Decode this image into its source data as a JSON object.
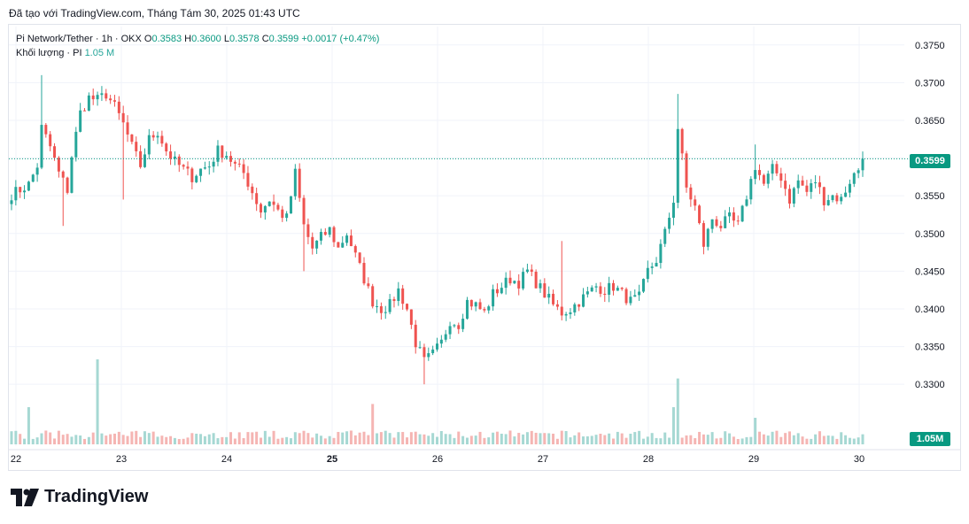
{
  "caption": "Đã tạo với TradingView.com, Tháng Tám 30, 2025 01:43 UTC",
  "legend": {
    "symbol": "Pi Network/Tether · 1h · OKX",
    "o_label": "O",
    "o": "0.3583",
    "h_label": "H",
    "h": "0.3600",
    "l_label": "L",
    "l": "0.3578",
    "c_label": "C",
    "c": "0.3599",
    "change": "+0.0017 (+0.47%)",
    "volume_label": "Khối lượng · PI",
    "volume_value": "1.05 M"
  },
  "last_price_tag": "0.3599",
  "last_volume_tag": "1.05M",
  "brand": "TradingView",
  "colors": {
    "up": "#26a69a",
    "down": "#ef5350",
    "up_vol": "#a6d8d3",
    "down_vol": "#f5b5b3",
    "tag": "#089981"
  },
  "chart_data": {
    "type": "candlestick",
    "interval": "1h",
    "y_ticks": [
      "0.3750",
      "0.3700",
      "0.3650",
      "0.3600",
      "0.3550",
      "0.3500",
      "0.3450",
      "0.3400",
      "0.3350",
      "0.3300"
    ],
    "ylim": [
      0.3265,
      0.3765
    ],
    "x_ticks": [
      "22",
      "23",
      "24",
      "25",
      "26",
      "27",
      "28",
      "29",
      "30"
    ],
    "x_ticks_bold": [
      "25"
    ],
    "last_price": 0.3599,
    "close_path": [
      [
        0,
        0.3552
      ],
      [
        2,
        0.3558
      ],
      [
        4,
        0.3565
      ],
      [
        6,
        0.359
      ],
      [
        7,
        0.364
      ],
      [
        9,
        0.3615
      ],
      [
        11,
        0.358
      ],
      [
        13,
        0.3558
      ],
      [
        14,
        0.3603
      ],
      [
        16,
        0.366
      ],
      [
        18,
        0.368
      ],
      [
        20,
        0.3677
      ],
      [
        22,
        0.3685
      ],
      [
        24,
        0.3668
      ],
      [
        26,
        0.3645
      ],
      [
        28,
        0.3615
      ],
      [
        30,
        0.359
      ],
      [
        32,
        0.3625
      ],
      [
        34,
        0.3635
      ],
      [
        36,
        0.361
      ],
      [
        38,
        0.3595
      ],
      [
        40,
        0.3585
      ],
      [
        42,
        0.3575
      ],
      [
        44,
        0.3585
      ],
      [
        46,
        0.359
      ],
      [
        48,
        0.361
      ],
      [
        50,
        0.3605
      ],
      [
        52,
        0.359
      ],
      [
        54,
        0.358
      ],
      [
        56,
        0.3555
      ],
      [
        58,
        0.353
      ],
      [
        60,
        0.3545
      ],
      [
        62,
        0.353
      ],
      [
        64,
        0.352
      ],
      [
        66,
        0.358
      ],
      [
        68,
        0.351
      ],
      [
        70,
        0.348
      ],
      [
        72,
        0.3495
      ],
      [
        74,
        0.3505
      ],
      [
        76,
        0.348
      ],
      [
        78,
        0.35
      ],
      [
        80,
        0.347
      ],
      [
        82,
        0.344
      ],
      [
        84,
        0.341
      ],
      [
        86,
        0.34
      ],
      [
        88,
        0.3405
      ],
      [
        90,
        0.3425
      ],
      [
        92,
        0.34
      ],
      [
        94,
        0.3355
      ],
      [
        96,
        0.333
      ],
      [
        98,
        0.334
      ],
      [
        100,
        0.3355
      ],
      [
        102,
        0.3385
      ],
      [
        104,
        0.338
      ],
      [
        106,
        0.341
      ],
      [
        108,
        0.3405
      ],
      [
        110,
        0.3395
      ],
      [
        112,
        0.342
      ],
      [
        114,
        0.343
      ],
      [
        116,
        0.344
      ],
      [
        118,
        0.3435
      ],
      [
        120,
        0.345
      ],
      [
        122,
        0.3435
      ],
      [
        124,
        0.342
      ],
      [
        126,
        0.3405
      ],
      [
        128,
        0.3395
      ],
      [
        130,
        0.34
      ],
      [
        132,
        0.341
      ],
      [
        134,
        0.342
      ],
      [
        136,
        0.343
      ],
      [
        138,
        0.3425
      ],
      [
        140,
        0.343
      ],
      [
        142,
        0.342
      ],
      [
        144,
        0.341
      ],
      [
        146,
        0.3415
      ],
      [
        148,
        0.345
      ],
      [
        150,
        0.3465
      ],
      [
        152,
        0.35
      ],
      [
        154,
        0.3545
      ],
      [
        155,
        0.364
      ],
      [
        157,
        0.356
      ],
      [
        159,
        0.3535
      ],
      [
        161,
        0.3485
      ],
      [
        163,
        0.352
      ],
      [
        165,
        0.351
      ],
      [
        167,
        0.352
      ],
      [
        169,
        0.351
      ],
      [
        171,
        0.355
      ],
      [
        173,
        0.359
      ],
      [
        175,
        0.3565
      ],
      [
        177,
        0.3585
      ],
      [
        179,
        0.3575
      ],
      [
        181,
        0.3545
      ],
      [
        183,
        0.357
      ],
      [
        185,
        0.3555
      ],
      [
        187,
        0.357
      ],
      [
        189,
        0.3545
      ],
      [
        191,
        0.355
      ],
      [
        193,
        0.3545
      ],
      [
        195,
        0.357
      ],
      [
        197,
        0.3585
      ],
      [
        198,
        0.3599
      ]
    ],
    "volume_spikes": [
      [
        4,
        0.35
      ],
      [
        20,
        0.8
      ],
      [
        84,
        0.38
      ],
      [
        154,
        0.35
      ],
      [
        155,
        0.62
      ],
      [
        173,
        0.25
      ]
    ]
  }
}
